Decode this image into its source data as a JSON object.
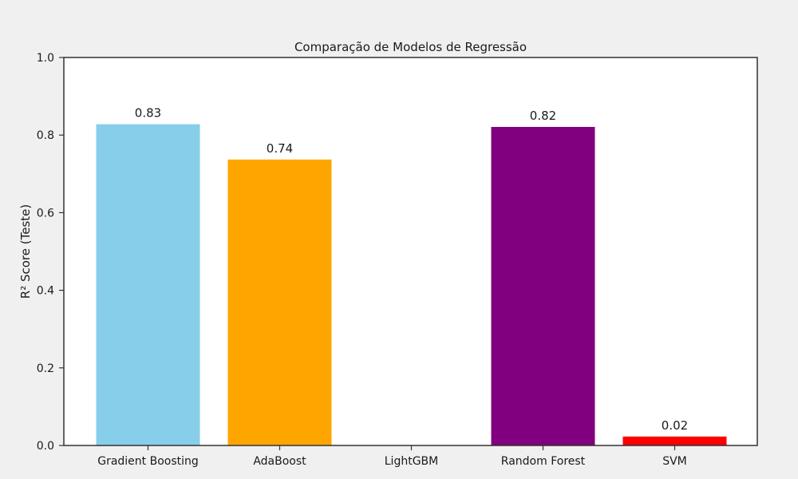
{
  "chart_data": {
    "type": "bar",
    "title": "Comparação de Modelos de Regressão",
    "xlabel": "",
    "ylabel": "R² Score (Teste)",
    "categories": [
      "Gradient Boosting",
      "AdaBoost",
      "LightGBM",
      "Random Forest",
      "SVM"
    ],
    "values": [
      0.828,
      0.737,
      0.0,
      0.821,
      0.023
    ],
    "value_labels": [
      "0.83",
      "0.74",
      "",
      "0.82",
      "0.02"
    ],
    "colors": [
      "#87ceeb",
      "#ffa500",
      "#ffffff",
      "#800080",
      "#ff0000"
    ],
    "ylim": [
      0,
      1.0
    ],
    "yticks": [
      0.0,
      0.2,
      0.4,
      0.6,
      0.8,
      1.0
    ],
    "ytick_labels": [
      "0.0",
      "0.2",
      "0.4",
      "0.6",
      "0.8",
      "1.0"
    ],
    "grid": false,
    "legend": "none",
    "background": "#f0f0f0",
    "plot_background": "#ffffff"
  }
}
